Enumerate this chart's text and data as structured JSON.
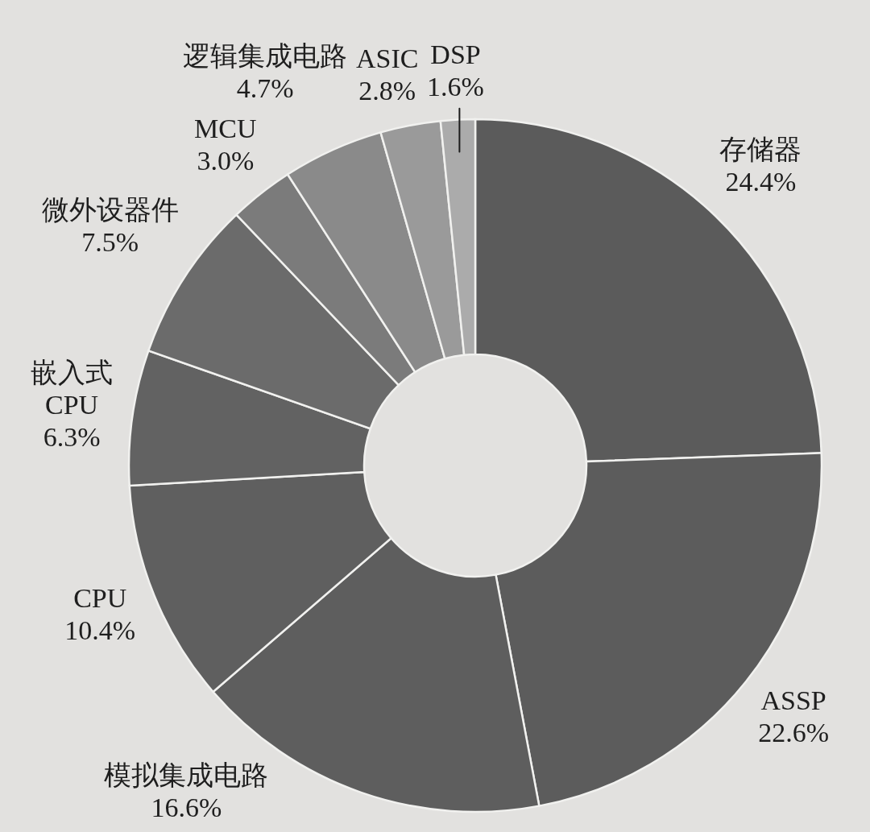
{
  "chart_data": {
    "type": "donut",
    "categories": [
      "存储器",
      "ASSP",
      "模拟集成电路",
      "CPU",
      "嵌入式CPU",
      "微外设器件",
      "MCU",
      "逻辑集成电路",
      "ASIC",
      "DSP"
    ],
    "values": [
      24.4,
      22.6,
      16.6,
      10.4,
      6.3,
      7.5,
      3.0,
      4.7,
      2.8,
      1.6
    ],
    "colors": [
      "#5b5b5b",
      "#5c5c5c",
      "#5e5e5e",
      "#5f5f5f",
      "#626262",
      "#6b6b6b",
      "#7b7b7b",
      "#8a8a8a",
      "#9a9a9a",
      "#ababab"
    ],
    "value_labels": [
      "24.4%",
      "22.6%",
      "16.6%",
      "10.4%",
      "6.3%",
      "7.5%",
      "3.0%",
      "4.7%",
      "2.8%",
      "1.6%"
    ]
  }
}
